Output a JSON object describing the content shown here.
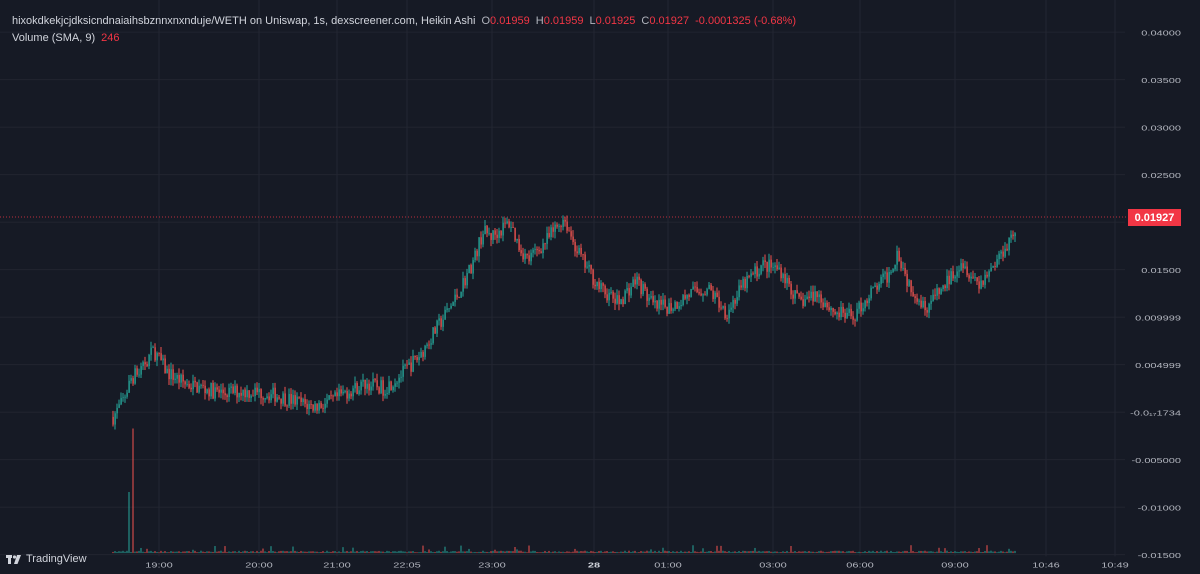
{
  "legend": {
    "symbol": "hixokdkekjcjdksicndnaiaihsbznnxnxnduje/WETH on Uniswap, 1s, dexscreener.com, Heikin Ashi",
    "open_label": "O",
    "open": "0.01959",
    "high_label": "H",
    "high": "0.01959",
    "low_label": "L",
    "low": "0.01925",
    "close_label": "C",
    "close": "0.01927",
    "change": "-0.0001325 (-0.68%)",
    "volume_label": "Volume (SMA, 9)",
    "volume_value": "246"
  },
  "price_tag": "0.01927",
  "brand": "TradingView",
  "colors": {
    "background": "#161a25",
    "up": "#26a69a",
    "down": "#ef5350",
    "last_price_line": "#f23645",
    "grid": "#232632",
    "text": "#b2b5be"
  },
  "chart_data": {
    "type": "candlestick",
    "series_style": "Heikin Ashi",
    "pair": "hixokdkekjcjdksicndnaiaihsbznnxnxnduje/WETH",
    "interval": "1s",
    "y_axis_ticks": [
      "0.04000",
      "0.03500",
      "0.03000",
      "0.02500",
      "0.02000",
      "0.01500",
      "0.009999",
      "0.004999",
      "-0.0₁₇1734",
      "-0.005000",
      "-0.01000",
      "-0.01500"
    ],
    "y_axis_values": [
      0.04,
      0.035,
      0.03,
      0.025,
      0.02,
      0.015,
      0.009999,
      0.004999,
      0.0,
      -0.005,
      -0.01,
      -0.015
    ],
    "x_axis_ticks": [
      "19:00",
      "20:00",
      "21:00",
      "22:05",
      "23:00",
      "28",
      "01:00",
      "03:00",
      "06:00",
      "09:00",
      "10:46",
      "10:49"
    ],
    "x_axis_bold": [
      "28"
    ],
    "last_price": 0.01927,
    "ylim": [
      -0.0165,
      0.042
    ],
    "price_path": [
      [
        0.0,
        -0.0005
      ],
      [
        0.01,
        0.001
      ],
      [
        0.02,
        0.0035
      ],
      [
        0.03,
        0.0045
      ],
      [
        0.045,
        0.0065
      ],
      [
        0.06,
        0.0042
      ],
      [
        0.08,
        0.003
      ],
      [
        0.1,
        0.0025
      ],
      [
        0.12,
        0.002
      ],
      [
        0.14,
        0.0022
      ],
      [
        0.16,
        0.0021
      ],
      [
        0.18,
        0.0018
      ],
      [
        0.2,
        0.0012
      ],
      [
        0.22,
        0.0006
      ],
      [
        0.24,
        0.001
      ],
      [
        0.26,
        0.0022
      ],
      [
        0.28,
        0.003
      ],
      [
        0.3,
        0.0025
      ],
      [
        0.32,
        0.004
      ],
      [
        0.34,
        0.006
      ],
      [
        0.36,
        0.009
      ],
      [
        0.38,
        0.012
      ],
      [
        0.4,
        0.016
      ],
      [
        0.41,
        0.019
      ],
      [
        0.42,
        0.0185
      ],
      [
        0.44,
        0.02
      ],
      [
        0.45,
        0.0175
      ],
      [
        0.46,
        0.016
      ],
      [
        0.48,
        0.018
      ],
      [
        0.5,
        0.0205
      ],
      [
        0.51,
        0.018
      ],
      [
        0.52,
        0.016
      ],
      [
        0.54,
        0.013
      ],
      [
        0.56,
        0.0115
      ],
      [
        0.58,
        0.014
      ],
      [
        0.6,
        0.011
      ],
      [
        0.62,
        0.0112
      ],
      [
        0.64,
        0.0125
      ],
      [
        0.66,
        0.013
      ],
      [
        0.68,
        0.0105
      ],
      [
        0.7,
        0.0135
      ],
      [
        0.72,
        0.0155
      ],
      [
        0.74,
        0.015
      ],
      [
        0.76,
        0.0115
      ],
      [
        0.78,
        0.0125
      ],
      [
        0.8,
        0.0105
      ],
      [
        0.82,
        0.01
      ],
      [
        0.84,
        0.0125
      ],
      [
        0.86,
        0.0145
      ],
      [
        0.87,
        0.017
      ],
      [
        0.88,
        0.014
      ],
      [
        0.9,
        0.011
      ],
      [
        0.92,
        0.013
      ],
      [
        0.94,
        0.016
      ],
      [
        0.96,
        0.0135
      ],
      [
        0.98,
        0.016
      ],
      [
        1.0,
        0.01927
      ]
    ]
  }
}
